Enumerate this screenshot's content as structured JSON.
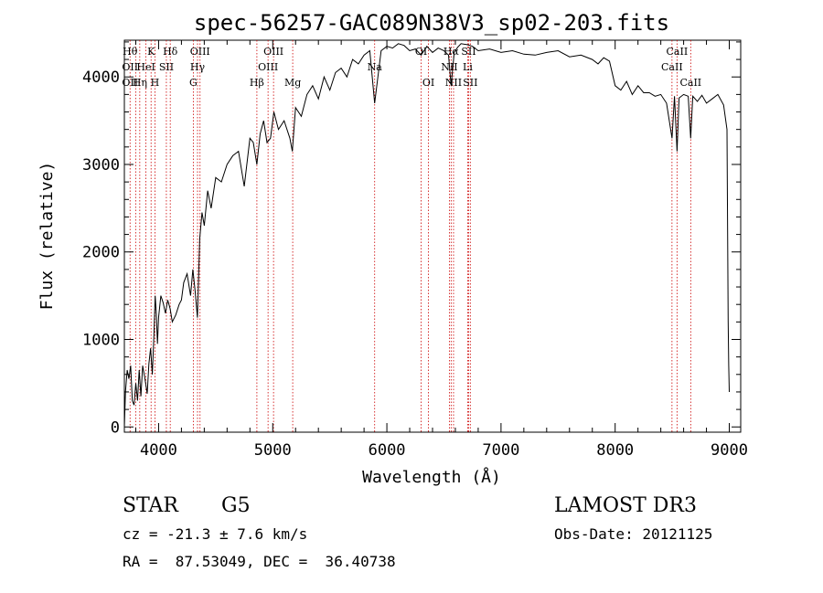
{
  "chart_data": {
    "type": "line",
    "title": "spec-56257-GAC089N38V3_sp02-203.fits",
    "xlabel": "Wavelength (Å)",
    "ylabel": "Flux (relative)",
    "xlim": [
      3700,
      9100
    ],
    "ylim": [
      -60,
      4420
    ],
    "xticks": [
      4000,
      5000,
      6000,
      7000,
      8000,
      9000
    ],
    "yticks": [
      0,
      1000,
      2000,
      3000,
      4000
    ],
    "series": [
      {
        "name": "spectrum",
        "x": [
          3700,
          3710,
          3725,
          3740,
          3755,
          3770,
          3785,
          3800,
          3815,
          3830,
          3845,
          3860,
          3880,
          3900,
          3915,
          3930,
          3945,
          3960,
          3970,
          3980,
          3990,
          4000,
          4020,
          4040,
          4060,
          4080,
          4101,
          4120,
          4150,
          4180,
          4200,
          4220,
          4250,
          4280,
          4300,
          4320,
          4340,
          4360,
          4380,
          4400,
          4430,
          4460,
          4500,
          4550,
          4600,
          4650,
          4700,
          4750,
          4800,
          4830,
          4861,
          4890,
          4920,
          4950,
          4980,
          5010,
          5050,
          5100,
          5150,
          5172,
          5200,
          5250,
          5300,
          5350,
          5400,
          5450,
          5500,
          5550,
          5600,
          5650,
          5700,
          5750,
          5800,
          5850,
          5893,
          5950,
          6000,
          6050,
          6100,
          6150,
          6200,
          6250,
          6300,
          6350,
          6400,
          6450,
          6500,
          6540,
          6563,
          6590,
          6620,
          6650,
          6700,
          6750,
          6800,
          6900,
          7000,
          7100,
          7200,
          7300,
          7400,
          7500,
          7600,
          7700,
          7800,
          7850,
          7900,
          7950,
          8000,
          8050,
          8100,
          8150,
          8200,
          8250,
          8300,
          8350,
          8400,
          8450,
          8498,
          8520,
          8542,
          8560,
          8600,
          8640,
          8662,
          8680,
          8720,
          8760,
          8800,
          8850,
          8900,
          8950,
          8980,
          8990,
          8995,
          9000
        ],
        "y": [
          0,
          400,
          650,
          550,
          700,
          300,
          250,
          500,
          300,
          650,
          350,
          700,
          550,
          380,
          720,
          900,
          600,
          1100,
          1500,
          1300,
          950,
          1250,
          1500,
          1420,
          1300,
          1450,
          1350,
          1200,
          1280,
          1400,
          1450,
          1650,
          1750,
          1500,
          1800,
          1550,
          1250,
          2150,
          2450,
          2300,
          2700,
          2500,
          2850,
          2800,
          3000,
          3100,
          3150,
          2750,
          3300,
          3250,
          3000,
          3350,
          3500,
          3250,
          3300,
          3600,
          3400,
          3500,
          3300,
          3150,
          3650,
          3550,
          3800,
          3900,
          3750,
          4000,
          3850,
          4050,
          4100,
          4000,
          4200,
          4150,
          4250,
          4300,
          3700,
          4300,
          4350,
          4330,
          4380,
          4360,
          4300,
          4320,
          4250,
          4350,
          4280,
          4330,
          4300,
          4250,
          3900,
          4280,
          4340,
          4380,
          4370,
          4350,
          4300,
          4320,
          4280,
          4300,
          4260,
          4250,
          4280,
          4300,
          4230,
          4250,
          4200,
          4150,
          4220,
          4180,
          3900,
          3850,
          3950,
          3800,
          3900,
          3820,
          3820,
          3780,
          3800,
          3700,
          3300,
          3780,
          3150,
          3760,
          3800,
          3780,
          3300,
          3780,
          3720,
          3790,
          3700,
          3750,
          3800,
          3680,
          3400,
          1200,
          700,
          400
        ]
      }
    ],
    "line_markers": [
      {
        "w": 3750,
        "labels": [
          {
            "t": "Hθ",
            "row": 1
          },
          {
            "t": "OII",
            "row": 2
          },
          {
            "t": "OII",
            "row": 3
          }
        ]
      },
      {
        "w": 3799,
        "labels": []
      },
      {
        "w": 3835,
        "labels": [
          {
            "t": "Hη",
            "row": 3
          }
        ]
      },
      {
        "w": 3889,
        "labels": [
          {
            "t": "HeI",
            "row": 2
          }
        ]
      },
      {
        "w": 3934,
        "labels": [
          {
            "t": "K",
            "row": 1
          }
        ]
      },
      {
        "w": 3968,
        "labels": [
          {
            "t": "H",
            "row": 3
          }
        ]
      },
      {
        "w": 4068,
        "labels": [
          {
            "t": "SII",
            "row": 2
          }
        ]
      },
      {
        "w": 4102,
        "labels": [
          {
            "t": "Hδ",
            "row": 1
          }
        ]
      },
      {
        "w": 4304,
        "labels": [
          {
            "t": "G",
            "row": 3
          }
        ]
      },
      {
        "w": 4341,
        "labels": [
          {
            "t": "Hγ",
            "row": 2
          }
        ]
      },
      {
        "w": 4363,
        "labels": [
          {
            "t": "OIII",
            "row": 1
          }
        ]
      },
      {
        "w": 4861,
        "labels": [
          {
            "t": "Hβ",
            "row": 3
          }
        ]
      },
      {
        "w": 4959,
        "labels": [
          {
            "t": "OIII",
            "row": 2
          }
        ]
      },
      {
        "w": 5007,
        "labels": [
          {
            "t": "OIII",
            "row": 1
          }
        ]
      },
      {
        "w": 5175,
        "labels": [
          {
            "t": "Mg",
            "row": 3
          }
        ]
      },
      {
        "w": 5893,
        "labels": [
          {
            "t": "Na",
            "row": 2
          }
        ]
      },
      {
        "w": 6300,
        "labels": [
          {
            "t": "OI",
            "row": 1
          }
        ]
      },
      {
        "w": 6364,
        "labels": [
          {
            "t": "OI",
            "row": 3
          }
        ]
      },
      {
        "w": 6548,
        "labels": [
          {
            "t": "NII",
            "row": 2
          }
        ]
      },
      {
        "w": 6563,
        "labels": [
          {
            "t": "Hα",
            "row": 1
          }
        ]
      },
      {
        "w": 6584,
        "labels": [
          {
            "t": "NII",
            "row": 3
          }
        ]
      },
      {
        "w": 6708,
        "labels": [
          {
            "t": "Li",
            "row": 2
          }
        ]
      },
      {
        "w": 6716,
        "labels": [
          {
            "t": "SII",
            "row": 1
          }
        ]
      },
      {
        "w": 6731,
        "labels": [
          {
            "t": "SII",
            "row": 3
          }
        ]
      },
      {
        "w": 8498,
        "labels": [
          {
            "t": "CaII",
            "row": 2
          }
        ]
      },
      {
        "w": 8542,
        "labels": [
          {
            "t": "CaII",
            "row": 1
          }
        ]
      },
      {
        "w": 8662,
        "labels": [
          {
            "t": "CaII",
            "row": 3
          }
        ]
      }
    ],
    "colors": {
      "spectrum": "#000000",
      "markers": "#cc0000",
      "axes": "#000000"
    }
  },
  "footer": {
    "object_type": "STAR",
    "subclass": "G5",
    "survey": "LAMOST DR3",
    "cz": "cz = -21.3 ± 7.6 km/s",
    "obs_date": "Obs-Date: 20121125",
    "coords": "RA =  87.53049, DEC =  36.40738"
  }
}
